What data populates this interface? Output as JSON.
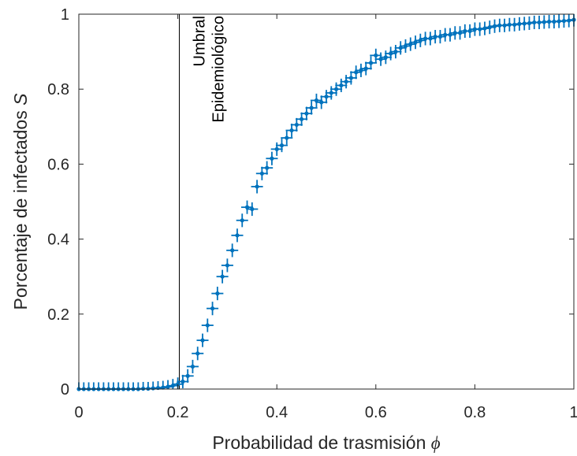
{
  "chart_data": {
    "type": "scatter",
    "xlabel": "Probabilidad de trasmisión",
    "xlabel_symbol": "ϕ",
    "ylabel": "Porcentaje de infectados",
    "ylabel_symbol": "S",
    "xlim": [
      0,
      1
    ],
    "ylim": [
      0,
      1
    ],
    "x_ticks": [
      "0",
      "0.2",
      "0.4",
      "0.6",
      "0.8",
      "1"
    ],
    "y_ticks": [
      "0",
      "0.2",
      "0.4",
      "0.6",
      "0.8",
      "1"
    ],
    "grid": false,
    "threshold": {
      "x": 0.203,
      "label_lines": [
        "Umbral",
        "Epidemiológico"
      ]
    },
    "error_bars": {
      "x_half_width": 0.012,
      "y_half_width": 0.018
    },
    "series": [
      {
        "color": "#0072BD",
        "x": [
          0.0,
          0.01,
          0.02,
          0.03,
          0.04,
          0.05,
          0.06,
          0.07,
          0.08,
          0.09,
          0.1,
          0.11,
          0.12,
          0.13,
          0.14,
          0.15,
          0.16,
          0.17,
          0.18,
          0.19,
          0.2,
          0.21,
          0.22,
          0.23,
          0.24,
          0.25,
          0.26,
          0.27,
          0.28,
          0.29,
          0.3,
          0.31,
          0.32,
          0.33,
          0.34,
          0.35,
          0.36,
          0.37,
          0.38,
          0.39,
          0.4,
          0.41,
          0.42,
          0.43,
          0.44,
          0.45,
          0.46,
          0.47,
          0.48,
          0.49,
          0.5,
          0.51,
          0.52,
          0.53,
          0.54,
          0.55,
          0.56,
          0.57,
          0.58,
          0.59,
          0.6,
          0.61,
          0.62,
          0.63,
          0.64,
          0.65,
          0.66,
          0.67,
          0.68,
          0.69,
          0.7,
          0.71,
          0.72,
          0.73,
          0.74,
          0.75,
          0.76,
          0.77,
          0.78,
          0.79,
          0.8,
          0.81,
          0.82,
          0.83,
          0.84,
          0.85,
          0.86,
          0.87,
          0.88,
          0.89,
          0.9,
          0.91,
          0.92,
          0.93,
          0.94,
          0.95,
          0.96,
          0.97,
          0.98,
          0.99,
          1.0
        ],
        "y": [
          0.0,
          0.0,
          0.0,
          0.0,
          0.0,
          0.0,
          0.0,
          0.0,
          0.0,
          0.0,
          0.0,
          0.0,
          0.0,
          0.001,
          0.001,
          0.002,
          0.003,
          0.004,
          0.006,
          0.009,
          0.013,
          0.02,
          0.035,
          0.06,
          0.095,
          0.13,
          0.17,
          0.215,
          0.255,
          0.3,
          0.33,
          0.37,
          0.41,
          0.45,
          0.485,
          0.48,
          0.54,
          0.575,
          0.59,
          0.615,
          0.64,
          0.65,
          0.67,
          0.69,
          0.705,
          0.72,
          0.735,
          0.75,
          0.77,
          0.765,
          0.78,
          0.79,
          0.8,
          0.81,
          0.82,
          0.83,
          0.845,
          0.85,
          0.855,
          0.87,
          0.89,
          0.88,
          0.885,
          0.895,
          0.9,
          0.91,
          0.915,
          0.92,
          0.925,
          0.93,
          0.935,
          0.935,
          0.94,
          0.94,
          0.945,
          0.945,
          0.95,
          0.95,
          0.955,
          0.955,
          0.96,
          0.96,
          0.962,
          0.965,
          0.968,
          0.97,
          0.97,
          0.972,
          0.972,
          0.974,
          0.975,
          0.976,
          0.978,
          0.978,
          0.979,
          0.98,
          0.98,
          0.981,
          0.982,
          0.983,
          0.985
        ]
      }
    ]
  }
}
